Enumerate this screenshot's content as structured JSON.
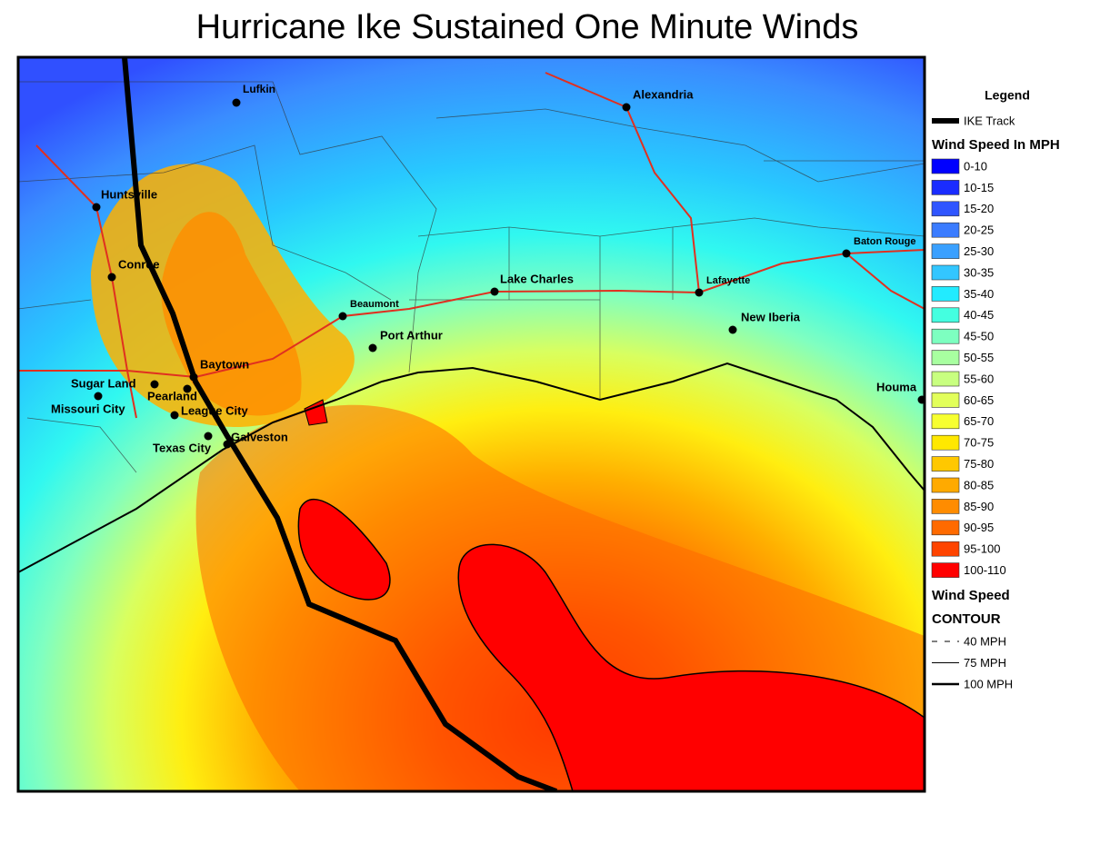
{
  "title": "Hurricane Ike Sustained One Minute Winds",
  "legend": {
    "title": "Legend",
    "track": "IKE Track",
    "wind_heading": "Wind Speed In MPH",
    "bins": [
      {
        "label": "0-10",
        "color": "#0000ff"
      },
      {
        "label": "10-15",
        "color": "#1a2cff"
      },
      {
        "label": "15-20",
        "color": "#2f55ff"
      },
      {
        "label": "20-25",
        "color": "#3b7cff"
      },
      {
        "label": "25-30",
        "color": "#3aa0ff"
      },
      {
        "label": "30-35",
        "color": "#33c6ff"
      },
      {
        "label": "35-40",
        "color": "#22ebff"
      },
      {
        "label": "40-45",
        "color": "#44ffe0"
      },
      {
        "label": "45-50",
        "color": "#7dffc0"
      },
      {
        "label": "50-55",
        "color": "#a8ffa0"
      },
      {
        "label": "55-60",
        "color": "#c8ff80"
      },
      {
        "label": "60-65",
        "color": "#e2ff5a"
      },
      {
        "label": "65-70",
        "color": "#f7ff30"
      },
      {
        "label": "70-75",
        "color": "#ffe800"
      },
      {
        "label": "75-80",
        "color": "#ffc800"
      },
      {
        "label": "80-85",
        "color": "#ffaa00"
      },
      {
        "label": "85-90",
        "color": "#ff8c00"
      },
      {
        "label": "90-95",
        "color": "#ff6a00"
      },
      {
        "label": "95-100",
        "color": "#ff4400"
      },
      {
        "label": "100-110",
        "color": "#ff0000"
      }
    ],
    "contour_heading": [
      "Wind Speed",
      "CONTOUR"
    ],
    "contours": [
      "40 MPH",
      "75 MPH",
      "100 MPH"
    ]
  },
  "cities": [
    "Lufkin",
    "Alexandria",
    "Huntsville",
    "Conroe",
    "Baton Rouge",
    "Lake Charles",
    "Lafayette",
    "Beaumont",
    "New Iberia",
    "Port Arthur",
    "Baytown",
    "Sugar Land",
    "Pearland",
    "Missouri City",
    "League City",
    "Texas City",
    "Galveston",
    "Houma"
  ]
}
